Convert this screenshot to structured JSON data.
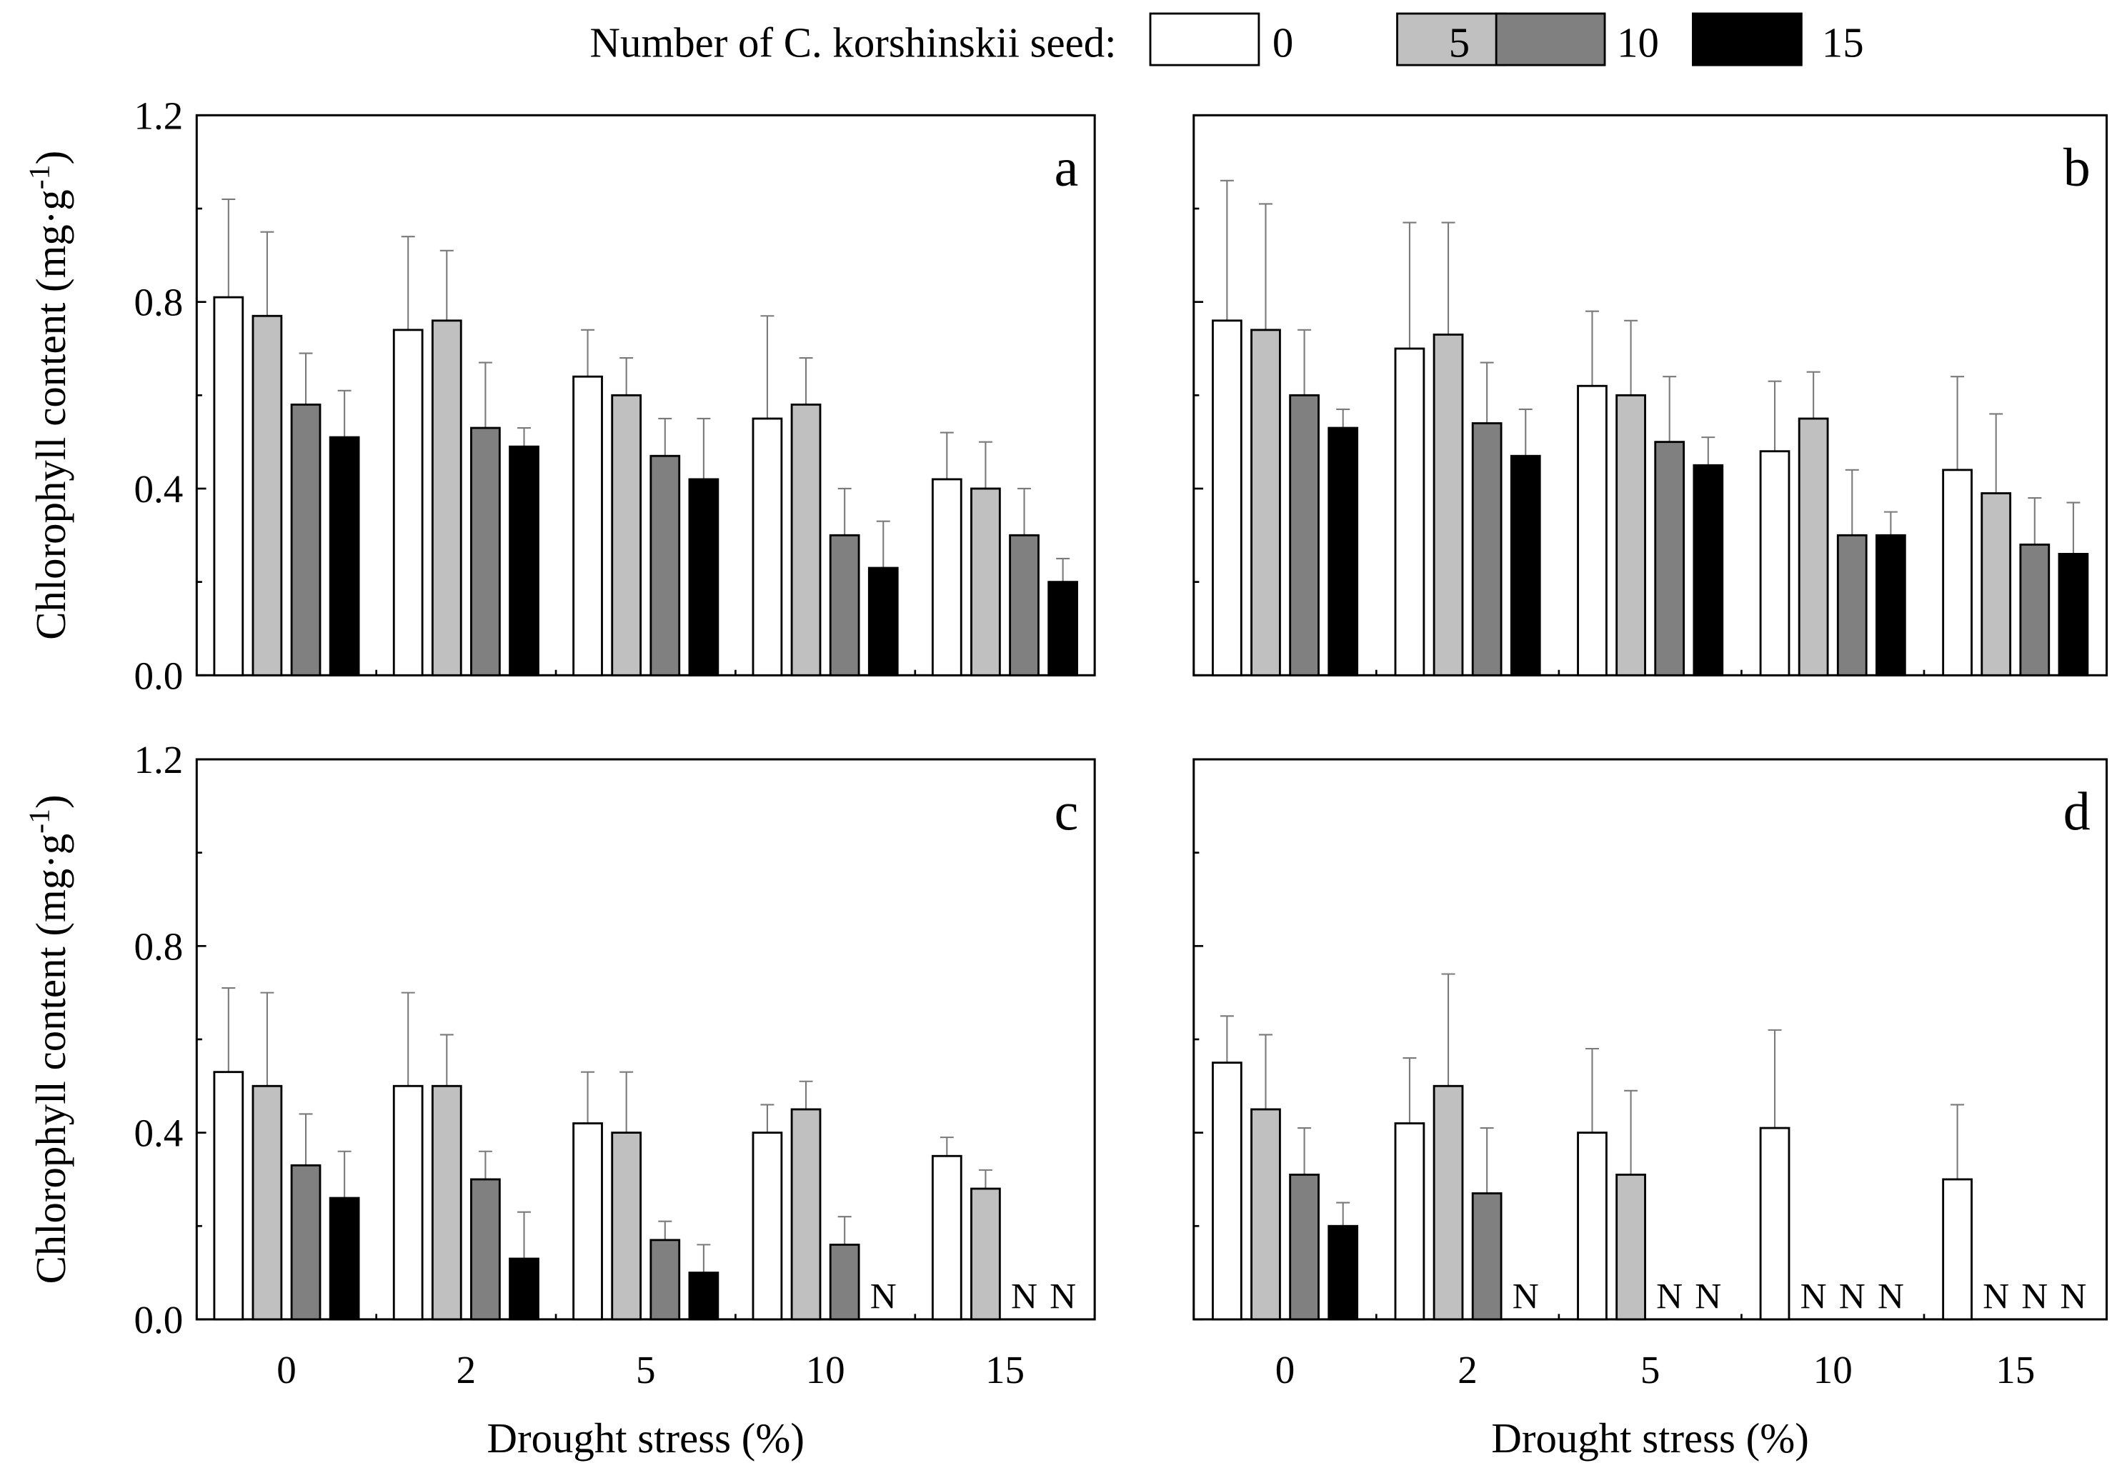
{
  "legend": {
    "title": "Number of C. korshinskii seed:",
    "entries": [
      {
        "label": "0",
        "color": "#ffffff"
      },
      {
        "label": "5",
        "color": "#c0c0c0"
      },
      {
        "label": "10",
        "color": "#808080"
      },
      {
        "label": "15",
        "color": "#000000"
      }
    ]
  },
  "chart_data": [
    {
      "type": "bar",
      "panel": "a",
      "categories": [
        "0",
        "2",
        "5",
        "10",
        "15"
      ],
      "xlabel": "",
      "ylabel": "Chlorophyll content (mg·g-1)",
      "ylim": [
        0,
        1.2
      ],
      "yticks": [
        "0.0",
        "0.4",
        "0.8",
        "1.2"
      ],
      "series": [
        {
          "name": "0",
          "values": [
            0.81,
            0.74,
            0.64,
            0.55,
            0.42
          ],
          "errors": [
            0.21,
            0.2,
            0.1,
            0.22,
            0.1
          ]
        },
        {
          "name": "5",
          "values": [
            0.77,
            0.76,
            0.6,
            0.58,
            0.4
          ],
          "errors": [
            0.18,
            0.15,
            0.08,
            0.1,
            0.1
          ]
        },
        {
          "name": "10",
          "values": [
            0.58,
            0.53,
            0.47,
            0.3,
            0.3
          ],
          "errors": [
            0.11,
            0.14,
            0.08,
            0.1,
            0.1
          ]
        },
        {
          "name": "15",
          "values": [
            0.51,
            0.49,
            0.42,
            0.23,
            0.2
          ],
          "errors": [
            0.1,
            0.04,
            0.13,
            0.1,
            0.05
          ]
        }
      ],
      "n_markers": []
    },
    {
      "type": "bar",
      "panel": "b",
      "categories": [
        "0",
        "2",
        "5",
        "10",
        "15"
      ],
      "xlabel": "",
      "ylabel": "",
      "ylim": [
        0,
        1.2
      ],
      "yticks": [],
      "series": [
        {
          "name": "0",
          "values": [
            0.76,
            0.7,
            0.62,
            0.48,
            0.44
          ],
          "errors": [
            0.3,
            0.27,
            0.16,
            0.15,
            0.2
          ]
        },
        {
          "name": "5",
          "values": [
            0.74,
            0.73,
            0.6,
            0.55,
            0.39
          ],
          "errors": [
            0.27,
            0.24,
            0.16,
            0.1,
            0.17
          ]
        },
        {
          "name": "10",
          "values": [
            0.6,
            0.54,
            0.5,
            0.3,
            0.28
          ],
          "errors": [
            0.14,
            0.13,
            0.14,
            0.14,
            0.1
          ]
        },
        {
          "name": "15",
          "values": [
            0.53,
            0.47,
            0.45,
            0.3,
            0.26
          ],
          "errors": [
            0.04,
            0.1,
            0.06,
            0.05,
            0.11
          ]
        }
      ],
      "n_markers": []
    },
    {
      "type": "bar",
      "panel": "c",
      "categories": [
        "0",
        "2",
        "5",
        "10",
        "15"
      ],
      "xlabel": "Drought stress (%)",
      "ylabel": "Chlorophyll content (mg·g-1)",
      "ylim": [
        0,
        1.2
      ],
      "yticks": [
        "0.0",
        "0.4",
        "0.8",
        "1.2"
      ],
      "series": [
        {
          "name": "0",
          "values": [
            0.53,
            0.5,
            0.42,
            0.4,
            0.35
          ],
          "errors": [
            0.18,
            0.2,
            0.11,
            0.06,
            0.04
          ]
        },
        {
          "name": "5",
          "values": [
            0.5,
            0.5,
            0.4,
            0.45,
            0.28
          ],
          "errors": [
            0.2,
            0.11,
            0.13,
            0.06,
            0.04
          ]
        },
        {
          "name": "10",
          "values": [
            0.33,
            0.3,
            0.17,
            0.16,
            null
          ],
          "errors": [
            0.11,
            0.06,
            0.04,
            0.06,
            null
          ]
        },
        {
          "name": "15",
          "values": [
            0.26,
            0.13,
            0.1,
            null,
            null
          ],
          "errors": [
            0.1,
            0.1,
            0.06,
            null,
            null
          ]
        }
      ],
      "n_markers": [
        {
          "category": 3,
          "series": 3,
          "text": "N"
        },
        {
          "category": 4,
          "series": 2,
          "text": "N"
        },
        {
          "category": 4,
          "series": 3,
          "text": "N"
        }
      ]
    },
    {
      "type": "bar",
      "panel": "d",
      "categories": [
        "0",
        "2",
        "5",
        "10",
        "15"
      ],
      "xlabel": "Drought stress (%)",
      "ylabel": "",
      "ylim": [
        0,
        1.2
      ],
      "yticks": [],
      "series": [
        {
          "name": "0",
          "values": [
            0.55,
            0.42,
            0.4,
            0.41,
            0.3
          ],
          "errors": [
            0.1,
            0.14,
            0.18,
            0.21,
            0.16
          ]
        },
        {
          "name": "5",
          "values": [
            0.45,
            0.5,
            0.31,
            null,
            null
          ],
          "errors": [
            0.16,
            0.24,
            0.18,
            null,
            null
          ]
        },
        {
          "name": "10",
          "values": [
            0.31,
            0.27,
            null,
            null,
            null
          ],
          "errors": [
            0.1,
            0.14,
            null,
            null,
            null
          ]
        },
        {
          "name": "15",
          "values": [
            0.2,
            null,
            null,
            null,
            null
          ],
          "errors": [
            0.05,
            null,
            null,
            null,
            null
          ]
        }
      ],
      "n_markers": [
        {
          "category": 1,
          "series": 3,
          "text": "N"
        },
        {
          "category": 2,
          "series": 2,
          "text": "N"
        },
        {
          "category": 2,
          "series": 3,
          "text": "N"
        },
        {
          "category": 3,
          "series": 1,
          "text": "N"
        },
        {
          "category": 3,
          "series": 2,
          "text": "N"
        },
        {
          "category": 3,
          "series": 3,
          "text": "N"
        },
        {
          "category": 4,
          "series": 1,
          "text": "N"
        },
        {
          "category": 4,
          "series": 2,
          "text": "N"
        },
        {
          "category": 4,
          "series": 3,
          "text": "N"
        }
      ]
    }
  ]
}
